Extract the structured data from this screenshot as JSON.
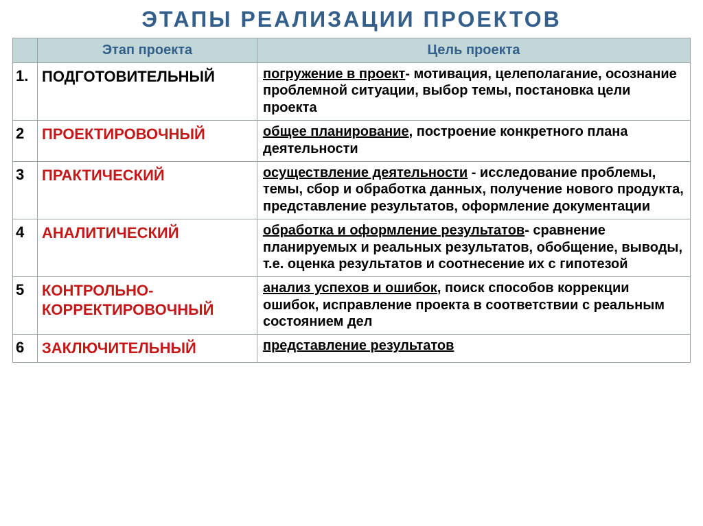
{
  "title": "ЭТАПЫ  РЕАЛИЗАЦИИ  ПРОЕКТОВ",
  "title_color": "#335f8a",
  "title_fontsize": 32,
  "header_bg": "#c2d7d7",
  "header_color": "#335f8a",
  "header_fontsize": 20,
  "border_color": "#9aa3a3",
  "columns": {
    "stage": "Этап проекта",
    "goal": "Цель проекта"
  },
  "num_color": "#000000",
  "stage_fontsize": 22,
  "goal_fontsize": 20,
  "goal_color": "#000000",
  "rows": [
    {
      "num": "1.",
      "stage": "ПОДГОТОВИТЕЛЬНЫЙ",
      "stage_color": "#000000",
      "goal_ul": "погружение в проект",
      "goal_rest": "- мотивация, целеполагание, осознание проблемной ситуации, выбор темы, постановка цели проекта"
    },
    {
      "num": "2",
      "stage": "ПРОЕКТИРОВОЧНЫЙ",
      "stage_color": "#c41818",
      "goal_ul": "общее планирование",
      "goal_rest": ",  построение конкретного плана деятельности"
    },
    {
      "num": "3",
      "stage": "ПРАКТИЧЕСКИЙ",
      "stage_color": "#c41818",
      "goal_ul": "осуществление деятельности",
      "goal_rest": " - исследование проблемы, темы, сбор и обработка данных, получение нового продукта, представление результатов, оформление документации"
    },
    {
      "num": "4",
      "stage": "АНАЛИТИЧЕСКИЙ",
      "stage_color": "#c41818",
      "goal_ul": "обработка и оформление результатов",
      "goal_rest": "- сравнение планируемых и реальных результатов, обобщение, выводы, т.е. оценка результатов и соотнесение их с гипотезой"
    },
    {
      "num": "5",
      "stage": "КОНТРОЛЬНО-\nКОРРЕКТИРОВОЧНЫЙ",
      "stage_color": "#c41818",
      "goal_ul": "анализ успехов и ошибок",
      "goal_rest": ", поиск способов коррекции ошибок, исправление проекта в соответствии с реальным состоянием дел"
    },
    {
      "num": "6",
      "stage": "ЗАКЛЮЧИТЕЛЬНЫЙ",
      "stage_color": "#c41818",
      "goal_ul": "представление результатов",
      "goal_rest": ""
    }
  ]
}
